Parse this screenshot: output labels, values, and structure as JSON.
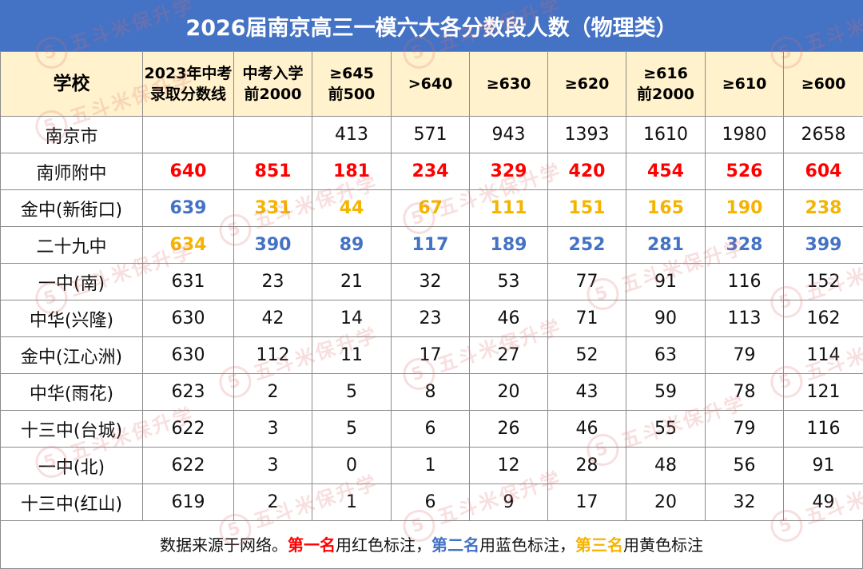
{
  "title": "2026届南京高三一模六大各分数段人数（物理类）",
  "headers": [
    {
      "lines": [
        "学校"
      ]
    },
    {
      "lines": [
        "2023年中考",
        "录取分数线"
      ]
    },
    {
      "lines": [
        "中考入学",
        "前2000"
      ]
    },
    {
      "lines": [
        "≥645",
        "前500"
      ]
    },
    {
      "lines": [
        ">640"
      ]
    },
    {
      "lines": [
        "≥630"
      ]
    },
    {
      "lines": [
        "≥620"
      ]
    },
    {
      "lines": [
        "≥616",
        "前2000"
      ]
    },
    {
      "lines": [
        "≥610"
      ]
    },
    {
      "lines": [
        "≥600"
      ]
    }
  ],
  "rows": [
    {
      "school": "南京市",
      "cells": [
        "",
        "",
        "413",
        "571",
        "943",
        "1393",
        "1610",
        "1980",
        "2658"
      ],
      "ranks": [
        0,
        0,
        0,
        0,
        0,
        0,
        0,
        0,
        0
      ]
    },
    {
      "school": "南师附中",
      "cells": [
        "640",
        "851",
        "181",
        "234",
        "329",
        "420",
        "454",
        "526",
        "604"
      ],
      "ranks": [
        1,
        1,
        1,
        1,
        1,
        1,
        1,
        1,
        1
      ]
    },
    {
      "school": "金中(新街口)",
      "cells": [
        "639",
        "331",
        "44",
        "67",
        "111",
        "151",
        "165",
        "190",
        "238"
      ],
      "ranks": [
        2,
        3,
        3,
        3,
        3,
        3,
        3,
        3,
        3
      ]
    },
    {
      "school": "二十九中",
      "cells": [
        "634",
        "390",
        "89",
        "117",
        "189",
        "252",
        "281",
        "328",
        "399"
      ],
      "ranks": [
        3,
        2,
        2,
        2,
        2,
        2,
        2,
        2,
        2
      ]
    },
    {
      "school": "一中(南)",
      "cells": [
        "631",
        "23",
        "21",
        "32",
        "53",
        "77",
        "91",
        "116",
        "152"
      ],
      "ranks": [
        0,
        0,
        0,
        0,
        0,
        0,
        0,
        0,
        0
      ]
    },
    {
      "school": "中华(兴隆)",
      "cells": [
        "630",
        "42",
        "14",
        "23",
        "46",
        "71",
        "90",
        "113",
        "162"
      ],
      "ranks": [
        0,
        0,
        0,
        0,
        0,
        0,
        0,
        0,
        0
      ]
    },
    {
      "school": "金中(江心洲)",
      "cells": [
        "630",
        "112",
        "11",
        "17",
        "27",
        "52",
        "63",
        "79",
        "114"
      ],
      "ranks": [
        0,
        0,
        0,
        0,
        0,
        0,
        0,
        0,
        0
      ]
    },
    {
      "school": "中华(雨花)",
      "cells": [
        "623",
        "2",
        "5",
        "8",
        "20",
        "43",
        "59",
        "78",
        "121"
      ],
      "ranks": [
        0,
        0,
        0,
        0,
        0,
        0,
        0,
        0,
        0
      ]
    },
    {
      "school": "十三中(台城)",
      "cells": [
        "622",
        "3",
        "5",
        "6",
        "26",
        "46",
        "55",
        "79",
        "116"
      ],
      "ranks": [
        0,
        0,
        0,
        0,
        0,
        0,
        0,
        0,
        0
      ]
    },
    {
      "school": "一中(北)",
      "cells": [
        "622",
        "3",
        "0",
        "1",
        "12",
        "28",
        "48",
        "56",
        "91"
      ],
      "ranks": [
        0,
        0,
        0,
        0,
        0,
        0,
        0,
        0,
        0
      ]
    },
    {
      "school": "十三中(红山)",
      "cells": [
        "619",
        "2",
        "1",
        "6",
        "9",
        "17",
        "20",
        "32",
        "49"
      ],
      "ranks": [
        0,
        0,
        0,
        0,
        0,
        0,
        0,
        0,
        0
      ]
    }
  ],
  "footer": {
    "part1": "数据来源于网络。",
    "first": "第一名",
    "part2": "用红色标注，",
    "second": "第二名",
    "part3": "用蓝色标注，",
    "third": "第三名",
    "part4": "用黄色标注"
  },
  "watermark": {
    "mark": "5",
    "text": "五斗米保升学"
  },
  "colors": {
    "title_bg": "#4472C4",
    "header_bg": "#FFF2CC",
    "rank_1": "#FF0000",
    "rank_2": "#4472C4",
    "rank_3": "#F5B400"
  }
}
